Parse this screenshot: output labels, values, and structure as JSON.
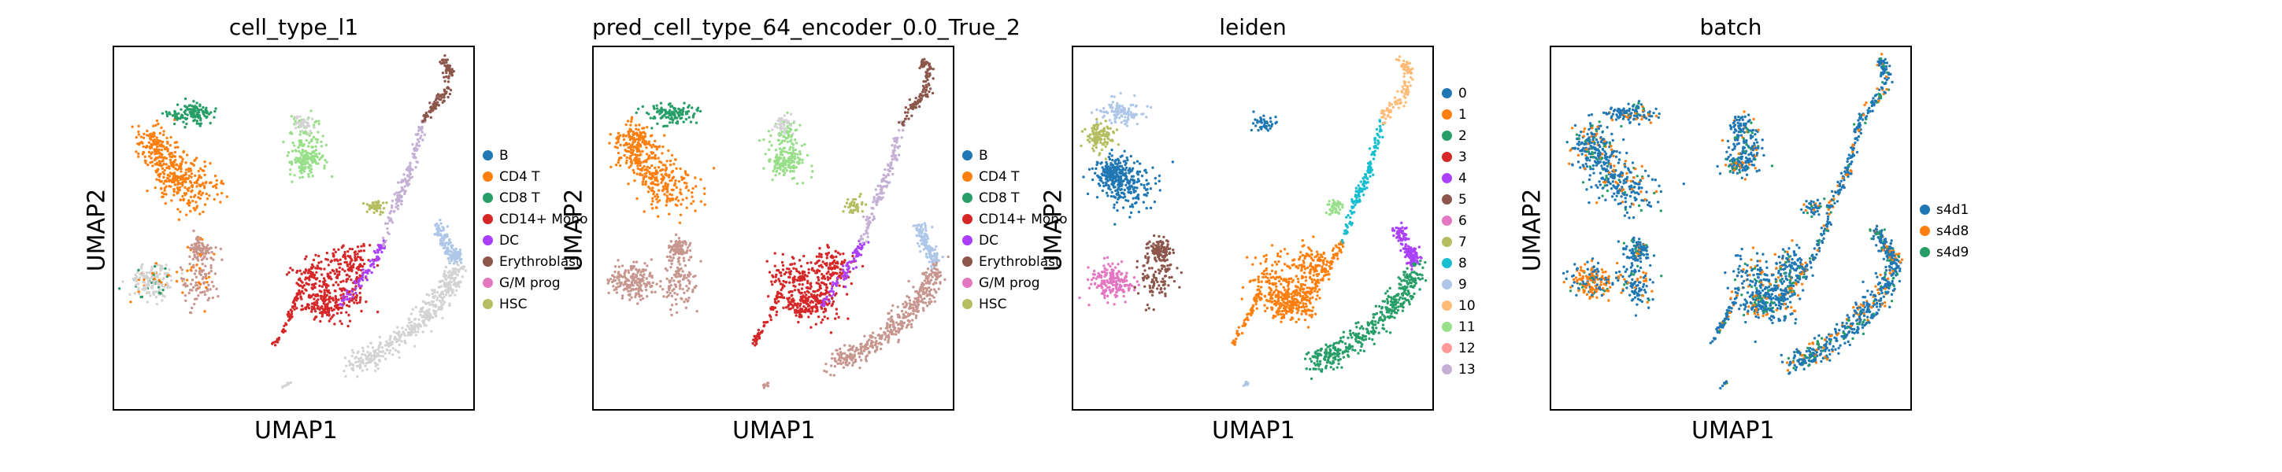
{
  "palette": {
    "B": "#1f77b4",
    "CD4 T": "#ff7f0e",
    "CD8 T": "#279e68",
    "CD14+ Mono": "#d62728",
    "DC": "#aa40fc",
    "Erythroblast": "#8c564b",
    "G/M prog": "#e377c2",
    "HSC": "#b5bd61",
    "NA": "#d3d3d3",
    "Pred": "#c7978f",
    "leiden": [
      "#1f77b4",
      "#ff7f0e",
      "#279e68",
      "#d62728",
      "#aa40fc",
      "#8c564b",
      "#e377c2",
      "#b5bd61",
      "#17becf",
      "#aec7e8",
      "#ffbb78",
      "#98df8a",
      "#ff9896",
      "#c5b0d5"
    ],
    "batch": [
      "#1f77b4",
      "#ff7f0e",
      "#279e68"
    ]
  },
  "panels": [
    {
      "title": "cell_type_l1",
      "xlabel": "UMAP1",
      "ylabel": "UMAP2",
      "legend": [
        "B",
        "CD4 T",
        "CD8 T",
        "CD14+ Mono",
        "DC",
        "Erythroblast",
        "G/M prog",
        "HSC"
      ]
    },
    {
      "title": "pred_cell_type_64_encoder_0.0_True_2",
      "xlabel": "UMAP1",
      "ylabel": "UMAP2",
      "legend": [
        "B",
        "CD4 T",
        "CD8 T",
        "CD14+ Mono",
        "DC",
        "Erythroblast",
        "G/M prog",
        "HSC"
      ]
    },
    {
      "title": "leiden",
      "xlabel": "UMAP1",
      "ylabel": "UMAP2",
      "legend": [
        "0",
        "1",
        "2",
        "3",
        "4",
        "5",
        "6",
        "7",
        "8",
        "9",
        "10",
        "11",
        "12",
        "13"
      ]
    },
    {
      "title": "batch",
      "xlabel": "UMAP1",
      "ylabel": "UMAP2",
      "legend": [
        "s4d1",
        "s4d8",
        "s4d9"
      ]
    }
  ],
  "chart_data": [
    {
      "type": "scatter",
      "title": "cell_type_l1",
      "xlabel": "UMAP1",
      "ylabel": "UMAP2",
      "grid": false,
      "legend_position": "right",
      "series": [
        {
          "name": "B"
        },
        {
          "name": "CD4 T"
        },
        {
          "name": "CD8 T"
        },
        {
          "name": "CD14+ Mono"
        },
        {
          "name": "DC"
        },
        {
          "name": "Erythroblast"
        },
        {
          "name": "G/M prog"
        },
        {
          "name": "HSC"
        }
      ]
    },
    {
      "type": "scatter",
      "title": "pred_cell_type_64_encoder_0.0_True_2",
      "xlabel": "UMAP1",
      "ylabel": "UMAP2",
      "grid": false,
      "legend_position": "right",
      "series": [
        {
          "name": "B"
        },
        {
          "name": "CD4 T"
        },
        {
          "name": "CD8 T"
        },
        {
          "name": "CD14+ Mono"
        },
        {
          "name": "DC"
        },
        {
          "name": "Erythroblast"
        },
        {
          "name": "G/M prog"
        },
        {
          "name": "HSC"
        }
      ]
    },
    {
      "type": "scatter",
      "title": "leiden",
      "xlabel": "UMAP1",
      "ylabel": "UMAP2",
      "grid": false,
      "legend_position": "right",
      "series": [
        {
          "name": "0"
        },
        {
          "name": "1"
        },
        {
          "name": "2"
        },
        {
          "name": "3"
        },
        {
          "name": "4"
        },
        {
          "name": "5"
        },
        {
          "name": "6"
        },
        {
          "name": "7"
        },
        {
          "name": "8"
        },
        {
          "name": "9"
        },
        {
          "name": "10"
        },
        {
          "name": "11"
        },
        {
          "name": "12"
        },
        {
          "name": "13"
        }
      ]
    },
    {
      "type": "scatter",
      "title": "batch",
      "xlabel": "UMAP1",
      "ylabel": "UMAP2",
      "grid": false,
      "legend_position": "right",
      "series": [
        {
          "name": "s4d1"
        },
        {
          "name": "s4d8"
        },
        {
          "name": "s4d9"
        }
      ]
    }
  ]
}
